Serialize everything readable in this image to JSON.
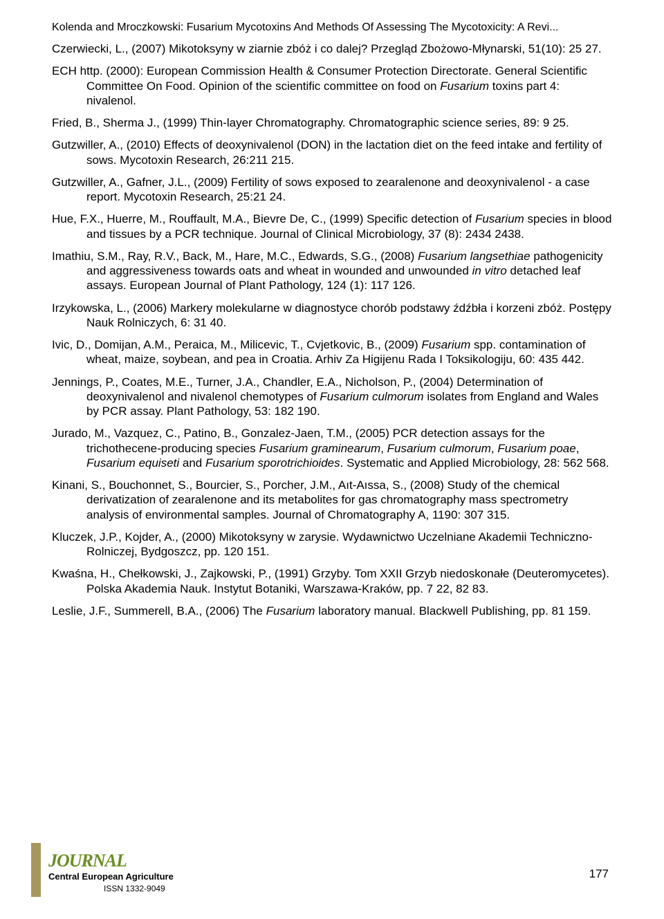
{
  "header": "Kolenda and Mroczkowski: Fusarium Mycotoxins And Methods Of Assessing The Mycotoxicity: A Revi...",
  "refs": [
    {
      "authors": "Czerwiecki, L., ",
      "year": "(2007) ",
      "title": "Mikotoksyny w ziarnie zbóż i co dalej? Przegląd Zbożowo-Młynarski, 51(10): 25 27."
    },
    {
      "authors": "ECH http. ",
      "year": "(2000): ",
      "title": "European Commission Health & Consumer Protection Directorate. General Scientific Committee On Food. Opinion of the scientific committee on food on ",
      "italic1": "Fusarium",
      "tail1": " toxins part 4: nivalenol."
    },
    {
      "authors": "Fried, B., Sherma J., ",
      "year": "(1999) ",
      "title": "Thin-layer Chromatography. Chromatographic science series, 89: 9 25."
    },
    {
      "authors": "Gutzwiller, A., ",
      "year": "(2010) ",
      "title": "Effects of deoxynivalenol (DON) in the lactation diet on the feed intake and fertility of sows. Mycotoxin Research, 26:211 215."
    },
    {
      "authors": "Gutzwiller, A., Gafner, J.L., ",
      "year": "(2009) ",
      "title": "Fertility of sows exposed to zearalenone and deoxynivalenol - a case report. Mycotoxin Research, 25:21 24."
    },
    {
      "authors": "Hue, F.X., Huerre, M., Rouffault, M.A., Bievre De, C., ",
      "year": "(1999) ",
      "title": "Specific detection of ",
      "italic1": "Fusarium",
      "tail1": " species in blood and tissues by a PCR technique. Journal of Clinical Microbiology, 37 (8): 2434 2438."
    },
    {
      "authors": "Imathiu, S.M., Ray, R.V., Back, M., Hare, M.C., Edwards, S.G., ",
      "year": "(2008) ",
      "italic1": "Fusarium langsethiae",
      "tail1": " pathogenicity and aggressiveness towards oats and wheat in wounded and unwounded ",
      "italic2": "in vitro",
      "tail2": " detached leaf assays. European Journal of Plant Pathology, 124 (1): 117 126."
    },
    {
      "authors": "Irzykowska, L., ",
      "year": "(2006) ",
      "title": "Markery molekularne w diagnostyce chorób podstawy źdźbła i korzeni zbóż. Postępy Nauk Rolniczych, 6: 31 40."
    },
    {
      "authors": "Ivic, D., Domijan, A.M., Peraica, M., Milicevic, T., Cvjetkovic, B., ",
      "year": "(2009) ",
      "italic1": "Fusarium",
      "tail1": " spp. contamination of wheat, maize, soybean, and pea in Croatia. Arhiv Za Higijenu Rada I Toksikologiju, 60: 435 442."
    },
    {
      "authors": "Jennings, P., Coates, M.E., Turner, J.A., Chandler, E.A., Nicholson, P., ",
      "year": "(2004) ",
      "title": "Determination of deoxynivalenol and nivalenol chemotypes of ",
      "italic1": "Fusarium culmorum",
      "tail1": " isolates from England and Wales by PCR assay. Plant Pathology, 53: 182 190."
    },
    {
      "authors": "Jurado, M., Vazquez, C., Patino, B., Gonzalez-Jaen, T.M., ",
      "year": "(2005) ",
      "title": "PCR detection assays for the trichothecene-producing species ",
      "italic1": "Fusarium graminearum",
      "tail1": ", ",
      "italic2": "Fusarium culmorum",
      "tail2": ", ",
      "italic3": "Fusarium poae",
      "tail3": ", ",
      "italic4": "Fusarium equiseti",
      "tail4": " and ",
      "italic5": "Fusarium sporotrichioides",
      "tail5": ". Systematic and Applied Microbiology, 28: 562 568."
    },
    {
      "authors": "Kinani, S., Bouchonnet, S., Bourcier, S., Porcher, J.M., Aıt-Aıssa, S., ",
      "year": "(2008) ",
      "title": "Study of the chemical derivatization of zearalenone and its metabolites for gas chromatography mass spectrometry analysis of environmental samples. Journal of Chromatography A, 1190: 307 315."
    },
    {
      "authors": "Kluczek, J.P., Kojder, A., ",
      "year": "(2000) ",
      "title": "Mikotoksyny w zarysie. Wydawnictwo Uczelniane Akademii Techniczno-Rolniczej, Bydgoszcz, pp. 120 151."
    },
    {
      "authors": "Kwaśna, H., Chełkowski, J., Zajkowski, P., ",
      "year": "(1991) ",
      "title": "Grzyby. Tom XXII Grzyb niedoskonałe (Deuteromycetes). Polska Akademia Nauk. Instytut Botaniki, Warszawa-Kraków, pp. 7 22, 82 83."
    },
    {
      "authors": "Leslie, J.F., Summerell, B.A., ",
      "year": "(2006) ",
      "title": "The ",
      "italic1": "Fusarium",
      "tail1": " laboratory manual. Blackwell Publishing, pp. 81 159."
    }
  ],
  "footer": {
    "journal": "JOURNAL",
    "cea": "Central European Agriculture",
    "issn": "ISSN 1332-9049",
    "page": "177"
  }
}
